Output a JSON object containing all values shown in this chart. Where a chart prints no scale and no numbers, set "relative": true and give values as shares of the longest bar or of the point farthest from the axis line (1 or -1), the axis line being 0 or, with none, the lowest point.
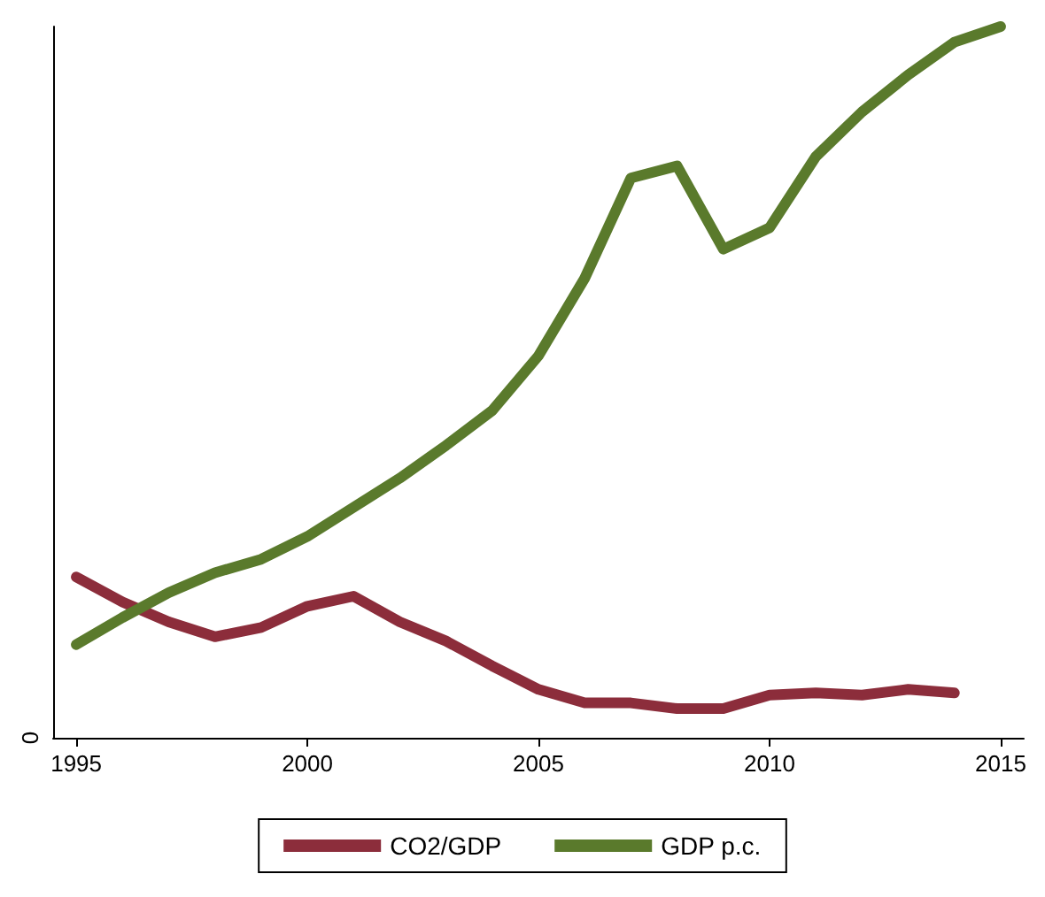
{
  "chart_data": {
    "type": "line",
    "relative": true,
    "x": [
      1995,
      1996,
      1997,
      1998,
      1999,
      2000,
      2001,
      2002,
      2003,
      2004,
      2005,
      2006,
      2007,
      2008,
      2009,
      2010,
      2011,
      2012,
      2013,
      2014,
      2015
    ],
    "series": [
      {
        "name": "CO2/GDP",
        "color": "#8c2d3b",
        "values": [
          0.226,
          0.191,
          0.163,
          0.142,
          0.155,
          0.185,
          0.199,
          0.163,
          0.136,
          0.101,
          0.068,
          0.049,
          0.049,
          0.041,
          0.041,
          0.06,
          0.063,
          0.06,
          0.068,
          0.063,
          null
        ]
      },
      {
        "name": "GDP p.c.",
        "color": "#5a7a2c",
        "values": [
          0.131,
          0.169,
          0.204,
          0.232,
          0.251,
          0.283,
          0.324,
          0.365,
          0.411,
          0.46,
          0.537,
          0.646,
          0.787,
          0.804,
          0.687,
          0.717,
          0.817,
          0.88,
          0.932,
          0.978,
          1
        ]
      }
    ],
    "xlim": [
      1994.5,
      2015.5
    ],
    "xticks": [
      1995,
      2000,
      2005,
      2010,
      2015
    ],
    "annotations": [
      "0"
    ],
    "legend": "bottom",
    "marker": "none",
    "line_style": "solid"
  }
}
